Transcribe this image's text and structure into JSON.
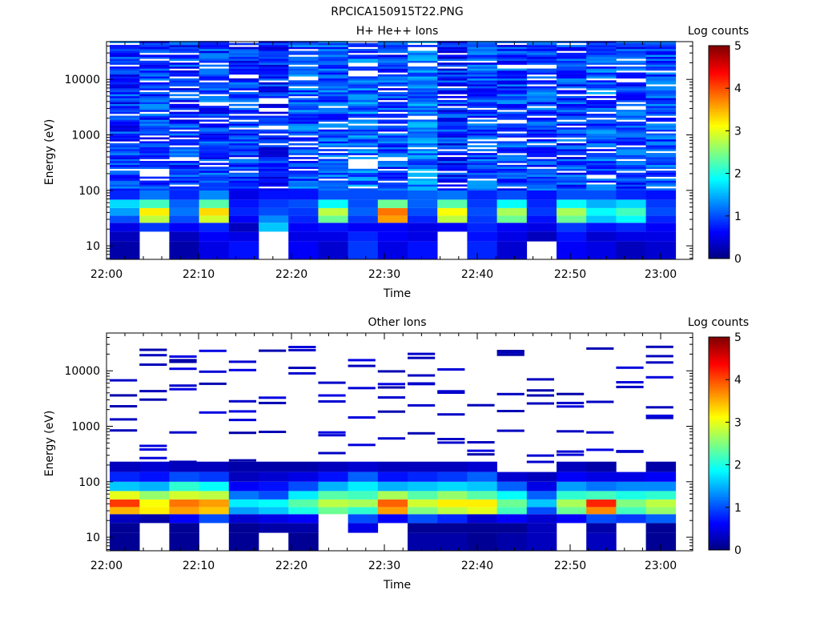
{
  "figure_title": "RPCICA150915T22.PNG",
  "chart_data": [
    {
      "type": "heatmap",
      "title": "H+ He++ Ions",
      "xlabel": "Time",
      "ylabel": "Energy (eV)",
      "y_scale": "log",
      "y_ticks": [
        "10",
        "100",
        "1000",
        "10000"
      ],
      "x_ticks": [
        "22:00",
        "22:10",
        "22:20",
        "22:30",
        "22:40",
        "22:50",
        "23:00"
      ],
      "colorbar": {
        "label": "Log counts",
        "range": [
          0,
          5
        ],
        "ticks": [
          "0",
          "1",
          "2",
          "3",
          "4",
          "5"
        ]
      },
      "columns": [
        "22:00",
        "22:03",
        "22:06",
        "22:10",
        "22:13",
        "22:16",
        "22:20",
        "22:23",
        "22:26",
        "22:30",
        "22:33",
        "22:36",
        "22:40",
        "22:43",
        "22:46",
        "22:50",
        "22:53",
        "22:56",
        "23:00"
      ],
      "summary_levels": {
        "energy_bins_eV": [
          "10",
          "15",
          "22",
          "30",
          "40",
          "55",
          "80",
          ">100"
        ],
        "rows": [
          [
            0.2,
            0,
            0.2,
            0.5,
            0.7,
            0,
            0.6,
            0.4,
            0.9,
            0.5,
            0.7,
            0,
            0.8,
            0.4,
            0,
            0.6,
            0.5,
            0.3,
            0.4
          ],
          [
            0.3,
            0,
            0.3,
            0.6,
            0.5,
            0,
            0.5,
            0.5,
            0.8,
            0.6,
            0.5,
            0,
            0.7,
            0.5,
            0.3,
            0.7,
            0.4,
            0.5,
            0.5
          ],
          [
            0.5,
            0.9,
            0.6,
            0.8,
            0.3,
            1.6,
            0.6,
            0.7,
            0.6,
            0.6,
            0.5,
            0.6,
            0.8,
            0.6,
            0.5,
            0.9,
            0.7,
            0.8,
            0.6
          ],
          [
            1.0,
            2.8,
            1.0,
            2.9,
            0.6,
            1.3,
            0.8,
            2.4,
            0.9,
            3.6,
            0.8,
            2.8,
            0.9,
            2.4,
            0.7,
            2.4,
            1.6,
            1.9,
            0.8
          ],
          [
            1.4,
            3.2,
            1.2,
            3.3,
            0.8,
            1.0,
            0.9,
            2.8,
            1.1,
            3.8,
            1.0,
            3.1,
            1.0,
            2.7,
            0.9,
            2.7,
            1.9,
            2.2,
            1.0
          ],
          [
            1.7,
            2.2,
            1.1,
            2.3,
            0.7,
            0.9,
            1.0,
            1.9,
            1.0,
            2.4,
            1.1,
            2.3,
            0.9,
            1.9,
            0.8,
            1.9,
            1.5,
            1.7,
            0.9
          ],
          [
            0.8,
            1.2,
            0.8,
            1.3,
            0.5,
            0.7,
            0.7,
            1.0,
            1.0,
            1.0,
            1.1,
            1.2,
            0.8,
            1.0,
            0.7,
            1.0,
            1.0,
            0.8,
            0.7
          ],
          [
            0.6,
            0.7,
            0.6,
            0.7,
            0.6,
            0.5,
            0.9,
            0.9,
            1.1,
            0.7,
            1.2,
            0.5,
            0.8,
            0.7,
            0.8,
            0.7,
            0.9,
            0.7,
            0.8
          ]
        ]
      }
    },
    {
      "type": "heatmap",
      "title": "Other Ions",
      "xlabel": "Time",
      "ylabel": "Energy (eV)",
      "y_scale": "log",
      "y_ticks": [
        "10",
        "100",
        "1000",
        "10000"
      ],
      "x_ticks": [
        "22:00",
        "22:10",
        "22:20",
        "22:30",
        "22:40",
        "22:50",
        "23:00"
      ],
      "colorbar": {
        "label": "Log counts",
        "range": [
          0,
          5
        ],
        "ticks": [
          "0",
          "1",
          "2",
          "3",
          "4",
          "5"
        ]
      },
      "columns": [
        "22:00",
        "22:03",
        "22:06",
        "22:10",
        "22:13",
        "22:16",
        "22:20",
        "22:23",
        "22:26",
        "22:30",
        "22:33",
        "22:36",
        "22:40",
        "22:43",
        "22:46",
        "22:50",
        "22:53",
        "22:56",
        "23:00"
      ],
      "summary_levels": {
        "energy_bins_eV": [
          "10",
          "15",
          "22",
          "30",
          "40",
          "55",
          "80",
          "120",
          "200"
        ],
        "rows": [
          [
            0.1,
            0,
            0.1,
            0,
            0.1,
            0,
            0.1,
            0,
            0,
            0,
            0.2,
            0.2,
            0.1,
            0.2,
            0.3,
            0,
            0.3,
            0,
            0.1
          ],
          [
            0.1,
            0,
            0.1,
            0,
            0.1,
            0.2,
            0.2,
            0,
            0.5,
            0,
            0.1,
            0.1,
            0.1,
            0.1,
            0.3,
            0,
            0.2,
            0,
            0.1
          ],
          [
            0.3,
            0.2,
            0.6,
            1.0,
            0.4,
            0.5,
            0.6,
            0,
            1.0,
            0.6,
            1.0,
            0.8,
            0.4,
            0.6,
            0.4,
            0.6,
            1.0,
            0.9,
            1.1
          ],
          [
            3.5,
            3.2,
            3.6,
            3.4,
            1.4,
            1.6,
            2.0,
            2.4,
            2.1,
            3.6,
            2.5,
            2.8,
            3.0,
            2.2,
            1.0,
            2.4,
            3.7,
            2.2,
            2.6
          ],
          [
            4.1,
            3.1,
            3.8,
            3.6,
            1.8,
            1.9,
            2.3,
            2.8,
            2.7,
            3.9,
            2.9,
            3.2,
            3.2,
            2.4,
            1.6,
            2.7,
            4.2,
            2.5,
            2.8
          ],
          [
            3.0,
            2.6,
            2.9,
            2.8,
            1.2,
            1.0,
            1.8,
            2.3,
            2.2,
            2.7,
            2.3,
            2.6,
            2.3,
            1.9,
            1.1,
            2.1,
            2.2,
            2.0,
            2.1
          ],
          [
            1.6,
            1.5,
            2.1,
            1.9,
            0.6,
            0.7,
            1.0,
            1.5,
            1.8,
            1.5,
            1.6,
            1.7,
            1.6,
            1.1,
            0.5,
            1.4,
            1.2,
            1.3,
            1.3
          ],
          [
            0.8,
            0.7,
            1.0,
            0.9,
            0.3,
            0.4,
            0.5,
            0.7,
            1.1,
            0.7,
            0.8,
            0.9,
            1.1,
            0.4,
            0.3,
            0.6,
            0.5,
            0.5,
            0.6
          ],
          [
            0.3,
            0.4,
            0.3,
            0.3,
            0.2,
            0.2,
            0.2,
            0.3,
            0.4,
            0.3,
            0.3,
            0.3,
            0.4,
            0,
            0,
            0.3,
            0.2,
            0,
            0.2
          ]
        ]
      }
    }
  ],
  "colors": {
    "jet": [
      "#000080",
      "#0000ff",
      "#00ffff",
      "#ffff00",
      "#ff0000",
      "#800000"
    ],
    "axis": "#000000",
    "background": "#ffffff"
  }
}
